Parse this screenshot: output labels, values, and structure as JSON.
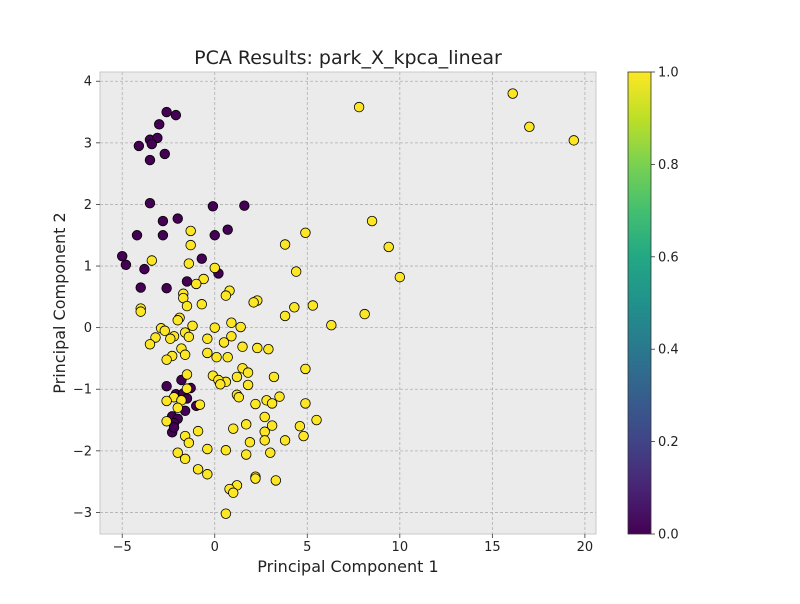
{
  "chart_data": {
    "type": "scatter",
    "title": "PCA Results: park_X_kpca_linear",
    "xlabel": "Principal Component 1",
    "ylabel": "Principal Component 2",
    "xlim": [
      -6.2,
      20.6
    ],
    "ylim": [
      -3.35,
      4.15
    ],
    "xticks": [
      -5,
      0,
      5,
      10,
      15,
      20
    ],
    "yticks": [
      -3,
      -2,
      -1,
      0,
      1,
      2,
      3,
      4
    ],
    "grid": true,
    "colorbar": {
      "label": "",
      "range": [
        0.0,
        1.0
      ],
      "ticks": [
        0.0,
        0.2,
        0.4,
        0.6,
        0.8,
        1.0
      ],
      "tick_labels": [
        "0.0",
        "0.2",
        "0.4",
        "0.6",
        "0.8",
        "1.0"
      ],
      "colormap": "viridis",
      "low_color": "#440154",
      "high_color": "#fde725"
    },
    "colors": {
      "class_0": "#440154",
      "class_1": "#fde725",
      "plot_background": "#ebebeb",
      "grid": "#b0b0b0",
      "marker_edge": "#000000"
    },
    "points": [
      {
        "x": -2.1,
        "y": 3.45,
        "c": 0
      },
      {
        "x": -2.6,
        "y": 3.5,
        "c": 0
      },
      {
        "x": -3.0,
        "y": 3.3,
        "c": 0
      },
      {
        "x": -3.5,
        "y": 3.05,
        "c": 0
      },
      {
        "x": -3.1,
        "y": 3.08,
        "c": 0
      },
      {
        "x": -4.1,
        "y": 2.95,
        "c": 0
      },
      {
        "x": -3.4,
        "y": 2.98,
        "c": 0
      },
      {
        "x": -3.5,
        "y": 2.72,
        "c": 0
      },
      {
        "x": -2.7,
        "y": 2.82,
        "c": 0
      },
      {
        "x": -3.5,
        "y": 2.02,
        "c": 0
      },
      {
        "x": -2.8,
        "y": 1.73,
        "c": 0
      },
      {
        "x": -2.0,
        "y": 1.77,
        "c": 0
      },
      {
        "x": -0.1,
        "y": 1.97,
        "c": 0
      },
      {
        "x": 1.6,
        "y": 1.98,
        "c": 0
      },
      {
        "x": -4.2,
        "y": 1.5,
        "c": 0
      },
      {
        "x": -2.8,
        "y": 1.5,
        "c": 0
      },
      {
        "x": 0.0,
        "y": 1.5,
        "c": 0
      },
      {
        "x": 0.7,
        "y": 1.59,
        "c": 0
      },
      {
        "x": -5.0,
        "y": 1.16,
        "c": 0
      },
      {
        "x": -4.8,
        "y": 1.02,
        "c": 0
      },
      {
        "x": -3.8,
        "y": 0.95,
        "c": 0
      },
      {
        "x": -0.7,
        "y": 1.12,
        "c": 0
      },
      {
        "x": -1.5,
        "y": 0.75,
        "c": 0
      },
      {
        "x": 0.2,
        "y": 0.88,
        "c": 0
      },
      {
        "x": -4.0,
        "y": 0.65,
        "c": 0
      },
      {
        "x": -2.6,
        "y": 0.64,
        "c": 0
      },
      {
        "x": -1.8,
        "y": -0.85,
        "c": 0
      },
      {
        "x": -2.6,
        "y": -0.95,
        "c": 0
      },
      {
        "x": -1.3,
        "y": -0.98,
        "c": 0
      },
      {
        "x": -2.1,
        "y": -1.08,
        "c": 0
      },
      {
        "x": -1.7,
        "y": -1.07,
        "c": 0
      },
      {
        "x": -1.5,
        "y": -1.15,
        "c": 0
      },
      {
        "x": -1.0,
        "y": -1.27,
        "c": 0
      },
      {
        "x": -1.6,
        "y": -1.35,
        "c": 0
      },
      {
        "x": -2.3,
        "y": -1.44,
        "c": 0
      },
      {
        "x": -2.0,
        "y": -1.48,
        "c": 0
      },
      {
        "x": -2.2,
        "y": -1.55,
        "c": 0
      },
      {
        "x": -2.3,
        "y": -1.7,
        "c": 0
      },
      {
        "x": -2.2,
        "y": -1.62,
        "c": 0
      },
      {
        "x": 7.8,
        "y": 3.58,
        "c": 1
      },
      {
        "x": 16.1,
        "y": 3.8,
        "c": 1
      },
      {
        "x": 17.0,
        "y": 3.26,
        "c": 1
      },
      {
        "x": 19.4,
        "y": 3.04,
        "c": 1
      },
      {
        "x": 8.5,
        "y": 1.73,
        "c": 1
      },
      {
        "x": 4.9,
        "y": 1.54,
        "c": 1
      },
      {
        "x": 9.4,
        "y": 1.31,
        "c": 1
      },
      {
        "x": 3.8,
        "y": 1.35,
        "c": 1
      },
      {
        "x": -1.3,
        "y": 1.57,
        "c": 1
      },
      {
        "x": -1.3,
        "y": 1.34,
        "c": 1
      },
      {
        "x": -3.4,
        "y": 1.09,
        "c": 1
      },
      {
        "x": -1.4,
        "y": 1.04,
        "c": 1
      },
      {
        "x": 0.0,
        "y": 0.97,
        "c": 1
      },
      {
        "x": 4.4,
        "y": 0.91,
        "c": 1
      },
      {
        "x": 10.0,
        "y": 0.82,
        "c": 1
      },
      {
        "x": -0.6,
        "y": 0.79,
        "c": 1
      },
      {
        "x": -1.0,
        "y": 0.71,
        "c": 1
      },
      {
        "x": 0.8,
        "y": 0.6,
        "c": 1
      },
      {
        "x": -1.7,
        "y": 0.55,
        "c": 1
      },
      {
        "x": -1.7,
        "y": 0.48,
        "c": 1
      },
      {
        "x": 0.6,
        "y": 0.52,
        "c": 1
      },
      {
        "x": 2.3,
        "y": 0.44,
        "c": 1
      },
      {
        "x": 2.1,
        "y": 0.41,
        "c": 1
      },
      {
        "x": -0.7,
        "y": 0.38,
        "c": 1
      },
      {
        "x": -1.5,
        "y": 0.35,
        "c": 1
      },
      {
        "x": 5.3,
        "y": 0.36,
        "c": 1
      },
      {
        "x": 4.3,
        "y": 0.33,
        "c": 1
      },
      {
        "x": -4.0,
        "y": 0.31,
        "c": 1
      },
      {
        "x": -4.0,
        "y": 0.26,
        "c": 1
      },
      {
        "x": 8.1,
        "y": 0.22,
        "c": 1
      },
      {
        "x": 3.8,
        "y": 0.19,
        "c": 1
      },
      {
        "x": -1.9,
        "y": 0.16,
        "c": 1
      },
      {
        "x": -2.0,
        "y": 0.12,
        "c": 1
      },
      {
        "x": 0.9,
        "y": 0.08,
        "c": 1
      },
      {
        "x": 6.3,
        "y": 0.04,
        "c": 1
      },
      {
        "x": -1.2,
        "y": 0.03,
        "c": 1
      },
      {
        "x": 1.4,
        "y": 0.01,
        "c": 1
      },
      {
        "x": 0.0,
        "y": 0.0,
        "c": 1
      },
      {
        "x": -2.9,
        "y": -0.01,
        "c": 1
      },
      {
        "x": -2.7,
        "y": -0.05,
        "c": 1
      },
      {
        "x": -1.6,
        "y": -0.08,
        "c": 1
      },
      {
        "x": -2.2,
        "y": -0.14,
        "c": 1
      },
      {
        "x": -3.2,
        "y": -0.16,
        "c": 1
      },
      {
        "x": -1.4,
        "y": -0.15,
        "c": 1
      },
      {
        "x": -0.4,
        "y": -0.18,
        "c": 1
      },
      {
        "x": -2.4,
        "y": -0.18,
        "c": 1
      },
      {
        "x": 0.9,
        "y": -0.14,
        "c": 1
      },
      {
        "x": 0.5,
        "y": -0.24,
        "c": 1
      },
      {
        "x": -3.5,
        "y": -0.27,
        "c": 1
      },
      {
        "x": 1.5,
        "y": -0.31,
        "c": 1
      },
      {
        "x": 2.3,
        "y": -0.33,
        "c": 1
      },
      {
        "x": 2.9,
        "y": -0.35,
        "c": 1
      },
      {
        "x": -1.8,
        "y": -0.34,
        "c": 1
      },
      {
        "x": -0.4,
        "y": -0.41,
        "c": 1
      },
      {
        "x": -2.3,
        "y": -0.46,
        "c": 1
      },
      {
        "x": -1.6,
        "y": -0.44,
        "c": 1
      },
      {
        "x": 0.1,
        "y": -0.48,
        "c": 1
      },
      {
        "x": 0.7,
        "y": -0.48,
        "c": 1
      },
      {
        "x": -2.6,
        "y": -0.52,
        "c": 1
      },
      {
        "x": 4.9,
        "y": -0.67,
        "c": 1
      },
      {
        "x": 1.5,
        "y": -0.66,
        "c": 1
      },
      {
        "x": 1.8,
        "y": -0.73,
        "c": 1
      },
      {
        "x": -1.5,
        "y": -0.76,
        "c": 1
      },
      {
        "x": 1.2,
        "y": -0.8,
        "c": 1
      },
      {
        "x": -0.1,
        "y": -0.78,
        "c": 1
      },
      {
        "x": 3.2,
        "y": -0.8,
        "c": 1
      },
      {
        "x": 0.6,
        "y": -0.88,
        "c": 1
      },
      {
        "x": 0.2,
        "y": -0.85,
        "c": 1
      },
      {
        "x": 0.3,
        "y": -0.92,
        "c": 1
      },
      {
        "x": 1.8,
        "y": -0.93,
        "c": 1
      },
      {
        "x": -1.5,
        "y": -0.99,
        "c": 1
      },
      {
        "x": 1.2,
        "y": -1.09,
        "c": 1
      },
      {
        "x": 3.5,
        "y": -1.12,
        "c": 1
      },
      {
        "x": 1.3,
        "y": -1.13,
        "c": 1
      },
      {
        "x": 2.8,
        "y": -1.18,
        "c": 1
      },
      {
        "x": -2.2,
        "y": -1.13,
        "c": 1
      },
      {
        "x": -1.8,
        "y": -1.18,
        "c": 1
      },
      {
        "x": -2.6,
        "y": -1.19,
        "c": 1
      },
      {
        "x": 3.1,
        "y": -1.23,
        "c": 1
      },
      {
        "x": 4.9,
        "y": -1.23,
        "c": 1
      },
      {
        "x": 2.2,
        "y": -1.24,
        "c": 1
      },
      {
        "x": -0.8,
        "y": -1.25,
        "c": 1
      },
      {
        "x": -2.0,
        "y": -1.3,
        "c": 1
      },
      {
        "x": 2.7,
        "y": -1.45,
        "c": 1
      },
      {
        "x": 5.5,
        "y": -1.5,
        "c": 1
      },
      {
        "x": -2.6,
        "y": -1.52,
        "c": 1
      },
      {
        "x": 1.7,
        "y": -1.57,
        "c": 1
      },
      {
        "x": 3.1,
        "y": -1.59,
        "c": 1
      },
      {
        "x": 4.6,
        "y": -1.6,
        "c": 1
      },
      {
        "x": 1.0,
        "y": -1.64,
        "c": 1
      },
      {
        "x": -0.9,
        "y": -1.68,
        "c": 1
      },
      {
        "x": 2.7,
        "y": -1.69,
        "c": 1
      },
      {
        "x": -1.6,
        "y": -1.76,
        "c": 1
      },
      {
        "x": 4.8,
        "y": -1.76,
        "c": 1
      },
      {
        "x": 2.7,
        "y": -1.83,
        "c": 1
      },
      {
        "x": 3.8,
        "y": -1.83,
        "c": 1
      },
      {
        "x": 1.9,
        "y": -1.86,
        "c": 1
      },
      {
        "x": -1.4,
        "y": -1.87,
        "c": 1
      },
      {
        "x": -0.4,
        "y": -1.97,
        "c": 1
      },
      {
        "x": 0.6,
        "y": -1.99,
        "c": 1
      },
      {
        "x": 3.0,
        "y": -2.03,
        "c": 1
      },
      {
        "x": -2.0,
        "y": -2.03,
        "c": 1
      },
      {
        "x": 1.7,
        "y": -2.06,
        "c": 1
      },
      {
        "x": -1.6,
        "y": -2.13,
        "c": 1
      },
      {
        "x": -0.9,
        "y": -2.3,
        "c": 1
      },
      {
        "x": -0.4,
        "y": -2.38,
        "c": 1
      },
      {
        "x": 2.2,
        "y": -2.42,
        "c": 1
      },
      {
        "x": 2.2,
        "y": -2.45,
        "c": 1
      },
      {
        "x": 3.3,
        "y": -2.48,
        "c": 1
      },
      {
        "x": 1.2,
        "y": -2.56,
        "c": 1
      },
      {
        "x": 0.8,
        "y": -2.62,
        "c": 1
      },
      {
        "x": 1.0,
        "y": -2.68,
        "c": 1
      },
      {
        "x": 0.6,
        "y": -3.02,
        "c": 1
      }
    ]
  }
}
